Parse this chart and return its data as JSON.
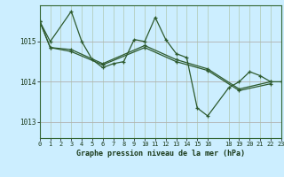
{
  "xlabel": "Graphe pression niveau de la mer (hPa)",
  "background_color": "#cceeff",
  "line_color": "#2d5a2d",
  "grid_color_v": "#b0c8b0",
  "grid_color_h": "#b0b0b0",
  "yticks": [
    1013,
    1014,
    1015
  ],
  "xticks": [
    0,
    1,
    2,
    3,
    4,
    5,
    6,
    7,
    8,
    9,
    10,
    11,
    12,
    13,
    14,
    15,
    16,
    18,
    19,
    20,
    21,
    22,
    23
  ],
  "xlim": [
    0,
    23
  ],
  "ylim": [
    1012.6,
    1015.9
  ],
  "series": [
    {
      "x": [
        0,
        1,
        3,
        4,
        5,
        6,
        7,
        8,
        9,
        10,
        11,
        12,
        13,
        14,
        15,
        16,
        18,
        19,
        20,
        21,
        22,
        23
      ],
      "y": [
        1015.5,
        1015.0,
        1015.75,
        1015.0,
        1014.55,
        1014.35,
        1014.45,
        1014.5,
        1015.05,
        1015.0,
        1015.6,
        1015.05,
        1014.7,
        1014.6,
        1013.35,
        1013.15,
        1013.85,
        1014.0,
        1014.25,
        1014.15,
        1014.0,
        1014.0
      ]
    },
    {
      "x": [
        0,
        1,
        3,
        6,
        10,
        13,
        16,
        19,
        22
      ],
      "y": [
        1015.5,
        1014.85,
        1014.8,
        1014.45,
        1014.9,
        1014.55,
        1014.32,
        1013.82,
        1014.0
      ]
    },
    {
      "x": [
        0,
        1,
        3,
        6,
        10,
        13,
        16,
        19,
        22
      ],
      "y": [
        1015.5,
        1014.85,
        1014.75,
        1014.42,
        1014.85,
        1014.5,
        1014.28,
        1013.78,
        1013.95
      ]
    }
  ]
}
